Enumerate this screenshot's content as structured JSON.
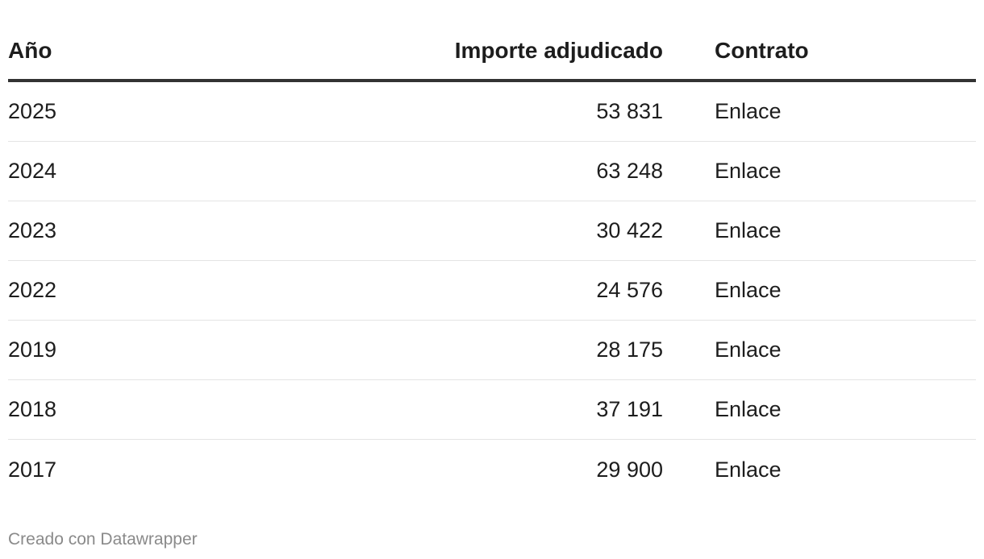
{
  "table": {
    "header": [
      "Año",
      "Importe adjudicado",
      "Contrato"
    ],
    "rows": [
      [
        "2025",
        "53 831",
        "Enlace"
      ],
      [
        "2024",
        "63 248",
        "Enlace"
      ],
      [
        "2023",
        "30 422",
        "Enlace"
      ],
      [
        "2022",
        "24 576",
        "Enlace"
      ],
      [
        "2019",
        "28 175",
        "Enlace"
      ],
      [
        "2018",
        "37 191",
        "Enlace"
      ],
      [
        "2017",
        "29 900",
        "Enlace"
      ]
    ]
  },
  "footer": "Creado con Datawrapper"
}
